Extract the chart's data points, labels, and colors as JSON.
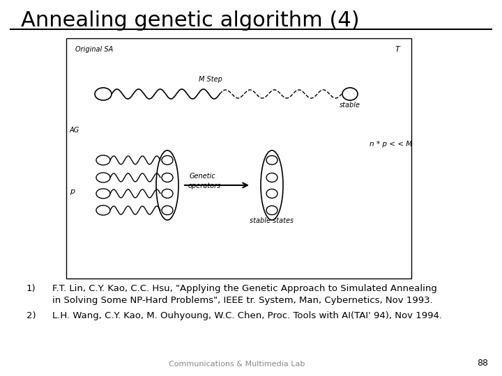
{
  "title": "Annealing genetic algorithm (4)",
  "bg_color": "#ffffff",
  "title_fontsize": 22,
  "ref1_line1": "F.T. Lin, C.Y. Kao, C.C. Hsu, \"Applying the Genetic Approach to Simulated Annealing",
  "ref1_line2": "in Solving Some NP-Hard Problems\", IEEE tr. System, Man, Cybernetics, Nov 1993.",
  "ref2": "L.H. Wang, C.Y. Kao, M. Ouhyoung, W.C. Chen, Proc. Tools with AI(TAI' 94), Nov 1994.",
  "footer": "Communications & Multimedia Lab",
  "page": "88"
}
